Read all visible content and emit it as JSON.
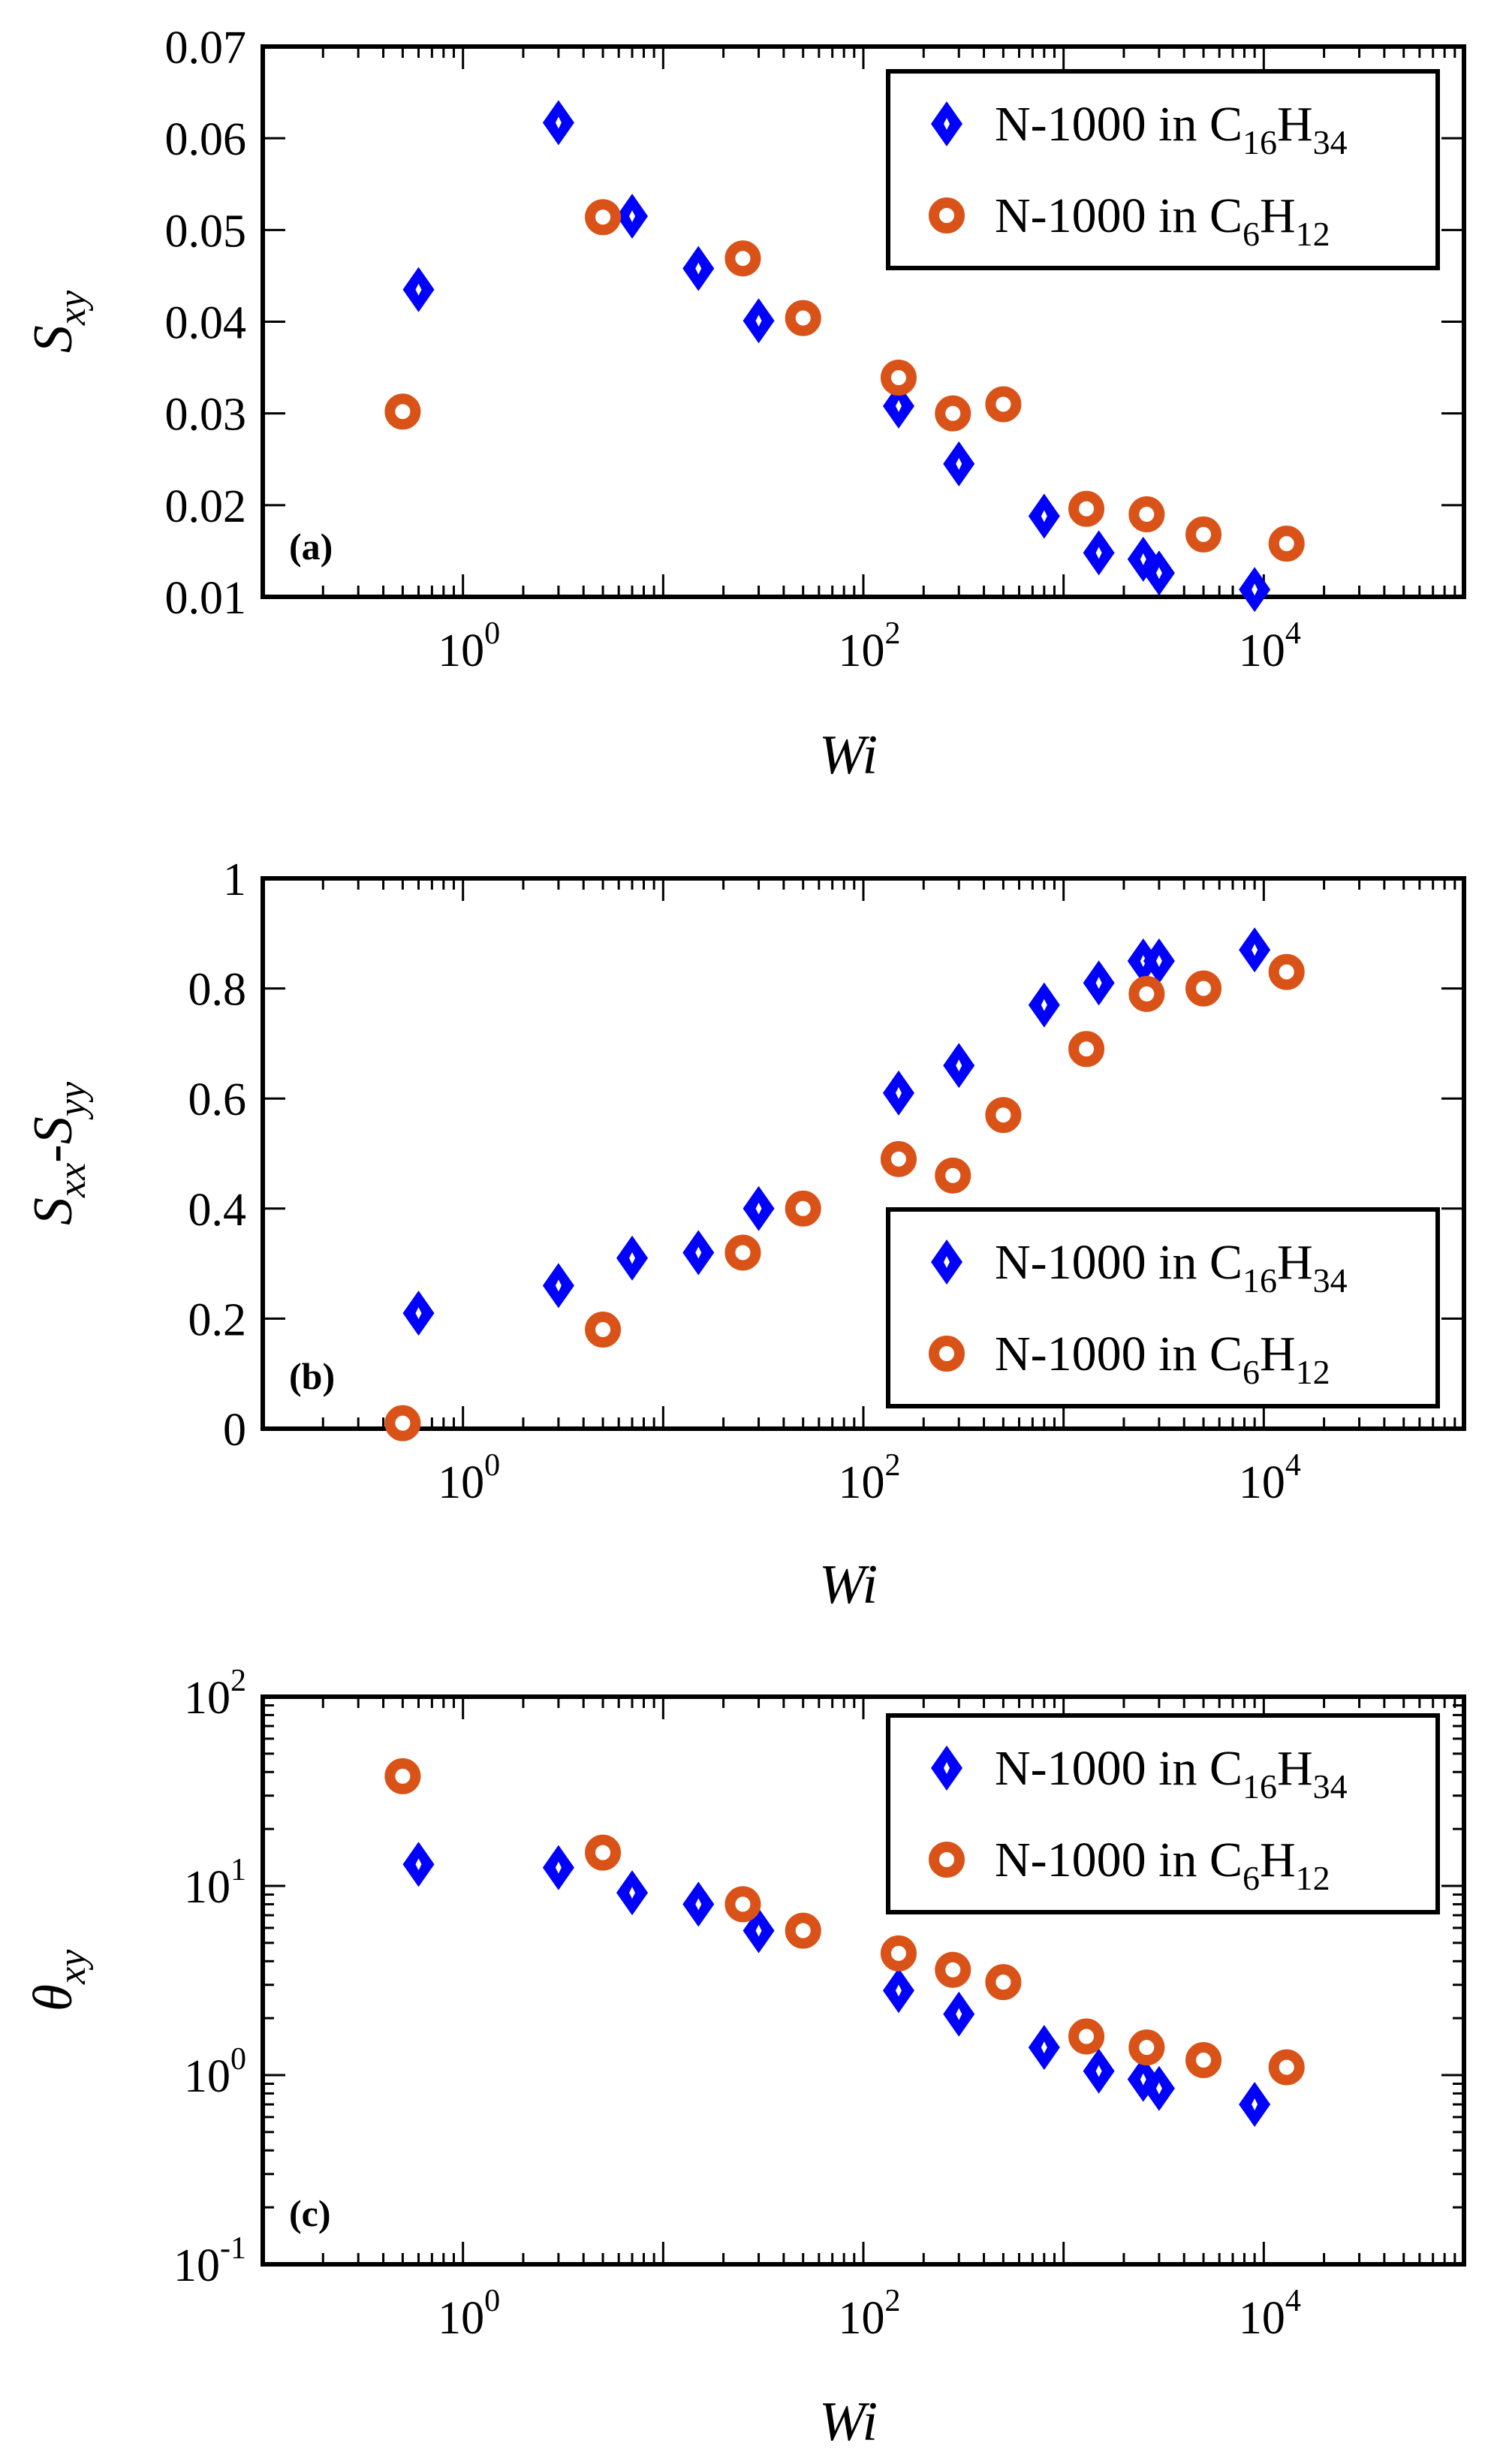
{
  "chart_data": [
    {
      "type": "scatter",
      "panel_label": "(a)",
      "x_scale": "log",
      "y_scale": "linear",
      "xlim": [
        0.1,
        100000
      ],
      "ylim": [
        0.01,
        0.07
      ],
      "xticks": [
        1,
        100,
        10000
      ],
      "xtick_labels": [
        {
          "base": "10",
          "exp": "0"
        },
        {
          "base": "10",
          "exp": "2"
        },
        {
          "base": "10",
          "exp": "4"
        }
      ],
      "yticks": [
        0.01,
        0.02,
        0.03,
        0.04,
        0.05,
        0.06,
        0.07
      ],
      "ytick_labels": [
        "0.01",
        "0.02",
        "0.03",
        "0.04",
        "0.05",
        "0.06",
        "0.07"
      ],
      "xlabel": "Wi",
      "ylabel": {
        "base": "S",
        "sub": "xy"
      },
      "legend_position": "top-right",
      "series": [
        {
          "name": "N-1000 in C16H34",
          "marker": "diamond",
          "color": "#0000ff",
          "x": [
            0.6,
            3,
            7,
            15,
            30,
            150,
            300,
            800,
            1500,
            2500,
            3000,
            9000
          ],
          "y": [
            0.0435,
            0.0617,
            0.0515,
            0.0458,
            0.0401,
            0.0308,
            0.0245,
            0.0188,
            0.0148,
            0.0141,
            0.0126,
            0.0108
          ]
        },
        {
          "name": "N-1000 in C6H12",
          "marker": "circle",
          "color": "#d95319",
          "x": [
            0.5,
            5,
            25,
            50,
            150,
            280,
            500,
            1300,
            2600,
            5000,
            13000
          ],
          "y": [
            0.0302,
            0.0514,
            0.0469,
            0.0404,
            0.0339,
            0.03,
            0.031,
            0.0196,
            0.019,
            0.0168,
            0.0158
          ]
        }
      ]
    },
    {
      "type": "scatter",
      "panel_label": "(b)",
      "x_scale": "log",
      "y_scale": "linear",
      "xlim": [
        0.1,
        100000
      ],
      "ylim": [
        0,
        1
      ],
      "xticks": [
        1,
        100,
        10000
      ],
      "xtick_labels": [
        {
          "base": "10",
          "exp": "0"
        },
        {
          "base": "10",
          "exp": "2"
        },
        {
          "base": "10",
          "exp": "4"
        }
      ],
      "yticks": [
        0,
        0.2,
        0.4,
        0.6,
        0.8,
        1
      ],
      "ytick_labels": [
        "0",
        "0.2",
        "0.4",
        "0.6",
        "0.8",
        "1"
      ],
      "xlabel": "Wi",
      "ylabel": {
        "base": "S",
        "sub": "xx",
        "mid": "-S",
        "sub2": "yy"
      },
      "legend_position": "bottom-right",
      "series": [
        {
          "name": "N-1000 in C16H34",
          "marker": "diamond",
          "color": "#0000ff",
          "x": [
            0.6,
            3,
            7,
            15,
            30,
            150,
            300,
            800,
            1500,
            2500,
            3000,
            9000
          ],
          "y": [
            0.21,
            0.26,
            0.31,
            0.32,
            0.4,
            0.61,
            0.66,
            0.77,
            0.81,
            0.85,
            0.85,
            0.87
          ]
        },
        {
          "name": "N-1000 in C6H12",
          "marker": "circle",
          "color": "#d95319",
          "x": [
            0.5,
            5,
            25,
            50,
            150,
            280,
            500,
            1300,
            2600,
            5000,
            13000
          ],
          "y": [
            0.01,
            0.18,
            0.32,
            0.4,
            0.49,
            0.46,
            0.57,
            0.69,
            0.79,
            0.8,
            0.83
          ]
        }
      ]
    },
    {
      "type": "scatter",
      "panel_label": "(c)",
      "x_scale": "log",
      "y_scale": "log",
      "xlim": [
        0.1,
        100000
      ],
      "ylim": [
        0.1,
        100
      ],
      "xticks": [
        1,
        100,
        10000
      ],
      "xtick_labels": [
        {
          "base": "10",
          "exp": "0"
        },
        {
          "base": "10",
          "exp": "2"
        },
        {
          "base": "10",
          "exp": "4"
        }
      ],
      "yticks": [
        0.1,
        1,
        10,
        100
      ],
      "ytick_labels": [
        {
          "base": "10",
          "exp": "-1"
        },
        {
          "base": "10",
          "exp": "0"
        },
        {
          "base": "10",
          "exp": "1"
        },
        {
          "base": "10",
          "exp": "2"
        }
      ],
      "xlabel": "Wi",
      "ylabel": {
        "base": "θ",
        "sub": "xy"
      },
      "legend_position": "top-right",
      "series": [
        {
          "name": "N-1000 in C16H34",
          "marker": "diamond",
          "color": "#0000ff",
          "x": [
            0.6,
            3,
            7,
            15,
            30,
            150,
            300,
            800,
            1500,
            2500,
            3000,
            9000
          ],
          "y": [
            13,
            12.5,
            9.2,
            8,
            5.8,
            2.8,
            2.1,
            1.4,
            1.05,
            0.95,
            0.85,
            0.7
          ]
        },
        {
          "name": "N-1000 in C6H12",
          "marker": "circle",
          "color": "#d95319",
          "x": [
            0.5,
            5,
            25,
            50,
            150,
            280,
            500,
            1300,
            2600,
            5000,
            13000
          ],
          "y": [
            38,
            15,
            8,
            5.8,
            4.4,
            3.6,
            3.1,
            1.6,
            1.4,
            1.2,
            1.1
          ]
        }
      ]
    }
  ],
  "legend": [
    {
      "prefix": "N-1000 in C",
      "s1": "16",
      "mid": "H",
      "s2": "34"
    },
    {
      "prefix": "N-1000 in C",
      "s1": "6",
      "mid": "H",
      "s2": "12"
    }
  ]
}
